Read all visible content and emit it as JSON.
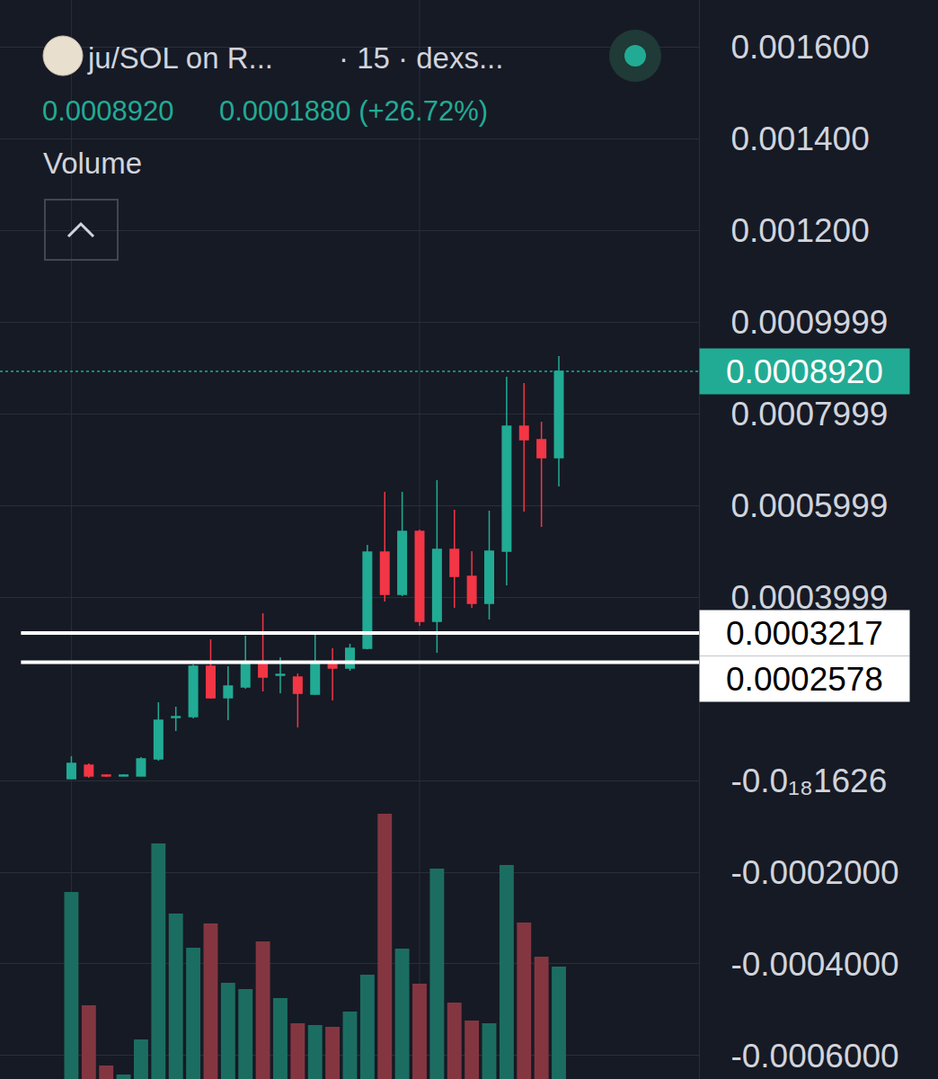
{
  "chart_data": {
    "type": "candlestick",
    "header": {
      "pair": "ju/SOL on R...",
      "details": "· 15 · dexs...",
      "last": "0.0008920",
      "change": "0.0001880 (+26.72%)"
    },
    "categories": [
      null,
      null,
      null,
      null,
      null,
      null,
      null,
      null,
      null,
      null,
      null,
      null,
      null,
      null,
      null,
      null,
      null,
      null,
      null,
      null,
      null,
      null,
      null,
      null,
      null,
      null,
      null,
      null,
      null
    ],
    "series": [
      {
        "type": "candlestick",
        "open": [
          3.9e-06,
          3.33e-05,
          1.18e-05,
          9.8e-06,
          9.8e-06,
          4.71e-05,
          0.0001373,
          0.0001392,
          0.000249,
          0.0001804,
          0.0002039,
          0.0002588,
          0.0002294,
          0.0002255,
          0.0001882,
          0.0002588,
          0.0002451,
          0.0002882,
          0.000498,
          0.0004059,
          0.0005431,
          0.0003471,
          0.0005039,
          0.0004451,
          0.0003863,
          0.0005,
          0.0007725,
          0.0007431,
          0.0007039
        ],
        "high": [
          5.29e-05,
          3.73e-05,
          1.37e-05,
          1.37e-05,
          5.1e-05,
          0.0001706,
          0.0001608,
          0.0002529,
          0.0003078,
          0.000249,
          0.0003157,
          0.0003647,
          0.0002686,
          0.0002333,
          0.0003176,
          0.0002882,
          0.000298,
          0.0005137,
          0.0006294,
          0.0006294,
          0.0005471,
          0.0006549,
          0.0005902,
          0.0005,
          0.0005882,
          0.0008804,
          0.0008667,
          0.0007824,
          0.0009255
        ],
        "low": [
          3.9e-06,
          5.9e-06,
          7.8e-06,
          9.8e-06,
          9.8e-06,
          4.31e-05,
          0.0001078,
          0.0001353,
          0.0001784,
          0.0001314,
          0.0002,
          0.0001941,
          0.0001902,
          0.0001157,
          0.0001863,
          0.0001745,
          0.0002392,
          0.0002863,
          0.0003902,
          0.000402,
          0.0003373,
          0.0002784,
          0.0003765,
          0.0003765,
          0.000351,
          0.0004255,
          0.0005863,
          0.0005529,
          0.0006412
        ],
        "close": [
          3.73e-05,
          9.8e-06,
          9.8e-06,
          1.18e-05,
          4.71e-05,
          0.0001314,
          0.0001392,
          0.000249,
          0.0001804,
          0.0002059,
          0.0002588,
          0.0002255,
          0.0002314,
          0.0001902,
          0.0002588,
          0.0002451,
          0.0002882,
          0.000498,
          0.0004059,
          0.0005431,
          0.0003471,
          0.0005039,
          0.0004451,
          0.0003863,
          0.0005,
          0.0007725,
          0.0007431,
          0.0007039,
          0.000892
        ],
        "colors": {
          "increasing": "#22ab94",
          "decreasing": "#f23645"
        }
      },
      {
        "type": "bar",
        "name": "Volume",
        "axis": "y2",
        "values": [
          208,
          82,
          15,
          5,
          44,
          262,
          184,
          146,
          173,
          107,
          100,
          153,
          90,
          62,
          60,
          58,
          75,
          116,
          295,
          145,
          106,
          234,
          85,
          65,
          62,
          238,
          174,
          136,
          125
        ],
        "colors": [
          "#1c6d61",
          "#843640",
          "#843640",
          "#1c6d61",
          "#1c6d61",
          "#1c6d61",
          "#1c6d61",
          "#1c6d61",
          "#843640",
          "#1c6d61",
          "#1c6d61",
          "#843640",
          "#1c6d61",
          "#843640",
          "#1c6d61",
          "#843640",
          "#1c6d61",
          "#1c6d61",
          "#843640",
          "#1c6d61",
          "#843640",
          "#1c6d61",
          "#843640",
          "#843640",
          "#1c6d61",
          "#1c6d61",
          "#843640",
          "#843640",
          "#1c6d61"
        ]
      }
    ],
    "ylim": [
      -0.000651,
      0.001702
    ],
    "yticks": [
      {
        "value": 0.0016,
        "label": "0.001600"
      },
      {
        "value": 0.0014,
        "label": "0.001400"
      },
      {
        "value": 0.0012,
        "label": "0.001200"
      },
      0.0009999,
      0.0007999,
      0.0005999,
      0.0003999,
      {
        "value": -1.626e-19,
        "label": "-0.0₁₈1626"
      },
      {
        "value": -0.0002,
        "label": "-0.0002000"
      },
      {
        "value": -0.0004,
        "label": "-0.0004000"
      },
      {
        "value": -0.0006,
        "label": "-0.0006000"
      }
    ],
    "y2lim": [
      0,
      1200
    ],
    "y2ticks": [],
    "price_line": {
      "value": 0.000892,
      "label": "0.0008920",
      "color": "#22ab94"
    },
    "levels": [
      {
        "value": 0.0003217,
        "label": "0.0003217"
      },
      {
        "value": 0.0002578,
        "label": "0.0002578"
      }
    ],
    "grid": true,
    "tick_labels": "y"
  }
}
